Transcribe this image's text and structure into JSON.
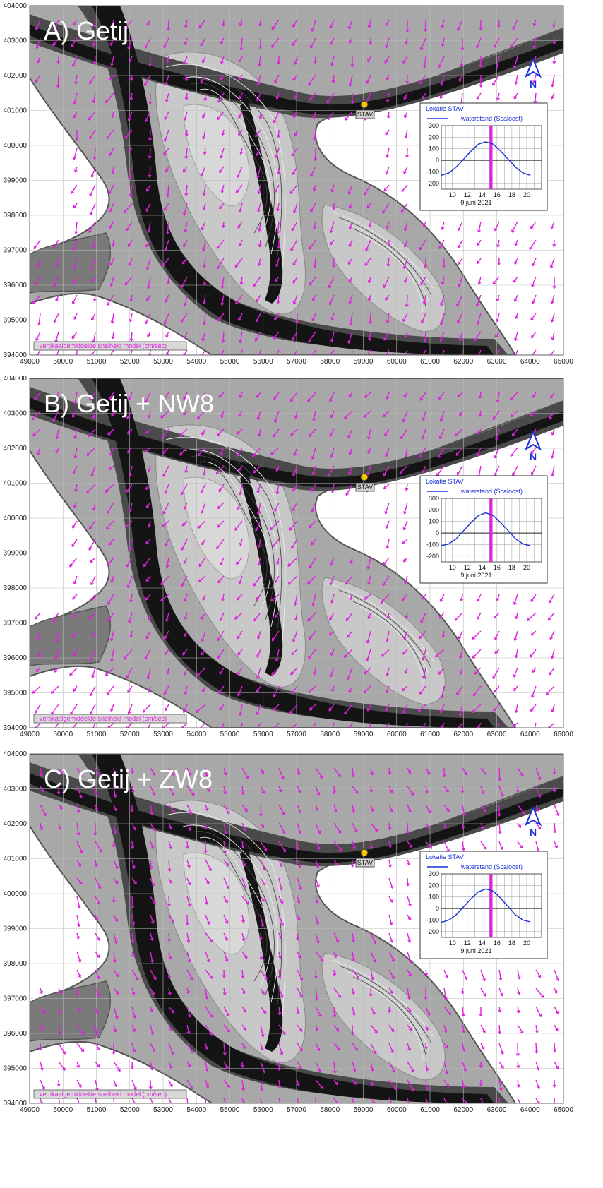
{
  "panels": [
    {
      "title": "A) Getij",
      "curve": [
        -130,
        -110,
        -60,
        10,
        80,
        140,
        160,
        140,
        80,
        10,
        -60,
        -110,
        -130
      ],
      "arrow_rotation": 110
    },
    {
      "title": "B) Getij + NW8",
      "curve": [
        -110,
        -95,
        -50,
        20,
        90,
        150,
        175,
        150,
        90,
        20,
        -50,
        -95,
        -110
      ],
      "arrow_rotation": 120
    },
    {
      "title": "C) Getij + ZW8",
      "curve": [
        -120,
        -100,
        -55,
        15,
        85,
        145,
        170,
        150,
        90,
        15,
        -55,
        -100,
        -115
      ],
      "arrow_rotation": 70
    }
  ],
  "axes": {
    "y_ticks": [
      "404000",
      "403000",
      "402000",
      "401000",
      "400000",
      "399000",
      "398000",
      "397000",
      "396000",
      "395000",
      "394000"
    ],
    "x_ticks": [
      "49000",
      "50000",
      "51000",
      "52000",
      "53000",
      "54000",
      "55000",
      "56000",
      "57000",
      "58000",
      "59000",
      "60000",
      "61000",
      "62000",
      "63000",
      "64000",
      "65000"
    ]
  },
  "map": {
    "velocity_label": "vertikaalgemiddelde snelheid model (cm/sec)",
    "station_label": "STAV",
    "north_label": "N",
    "colors": {
      "channel": "#141414",
      "deep": "#4a4a4a",
      "mid": "#7a7a7a",
      "shoal": "#a8a8a8",
      "flat": "#c8c8c8",
      "land": "#ffffff",
      "vector": "#e020e0"
    }
  },
  "inset": {
    "location_label": "Lokatie STAV",
    "legend_label": "waterstand (Scaloost)",
    "date_label": "9 juni 2021",
    "y_ticks": [
      "300",
      "200",
      "100",
      "0",
      "-100",
      "-200"
    ],
    "x_ticks": [
      "10",
      "12",
      "14",
      "16",
      "18",
      "20"
    ],
    "y_range": [
      -250,
      300
    ],
    "x_range": [
      8.5,
      22
    ],
    "time_marker": 15.2,
    "curve_x": [
      8.5,
      9.5,
      10.5,
      11.5,
      12.5,
      13.5,
      14.5,
      15.5,
      16.5,
      17.5,
      18.5,
      19.5,
      20.5
    ],
    "line_color": "#1a2fd6",
    "marker_color": "#e020e0"
  }
}
